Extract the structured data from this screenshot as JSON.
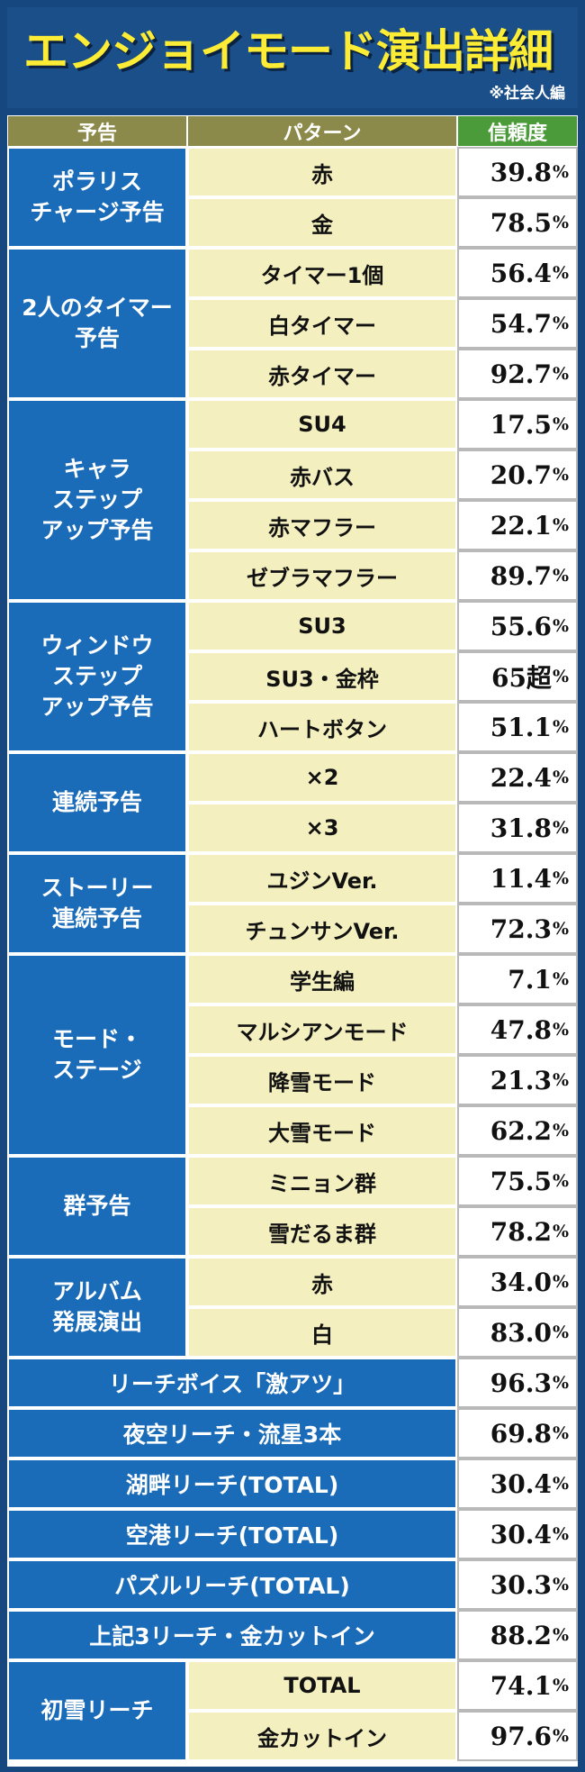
{
  "title": "エンジョイモード演出詳細",
  "subtitle": "※社会人編",
  "headers": {
    "announcement": "予告",
    "pattern": "パターン",
    "reliability": "信頼度"
  },
  "unit": "%",
  "groups": [
    {
      "name": "ポラリス\nチャージ予告",
      "rows": [
        {
          "pattern": "赤",
          "value": "39.8"
        },
        {
          "pattern": "金",
          "value": "78.5"
        }
      ]
    },
    {
      "name": "2人のタイマー\n予告",
      "rows": [
        {
          "pattern": "タイマー1個",
          "value": "56.4"
        },
        {
          "pattern": "白タイマー",
          "value": "54.7"
        },
        {
          "pattern": "赤タイマー",
          "value": "92.7"
        }
      ]
    },
    {
      "name": "キャラ\nステップ\nアップ予告",
      "rows": [
        {
          "pattern": "SU4",
          "value": "17.5"
        },
        {
          "pattern": "赤バス",
          "value": "20.7"
        },
        {
          "pattern": "赤マフラー",
          "value": "22.1"
        },
        {
          "pattern": "ゼブラマフラー",
          "value": "89.7"
        }
      ]
    },
    {
      "name": "ウィンドウ\nステップ\nアップ予告",
      "rows": [
        {
          "pattern": "SU3",
          "value": "55.6"
        },
        {
          "pattern": "SU3・金枠",
          "value": "65超"
        },
        {
          "pattern": "ハートボタン",
          "value": "51.1"
        }
      ]
    },
    {
      "name": "連続予告",
      "rows": [
        {
          "pattern": "×2",
          "value": "22.4"
        },
        {
          "pattern": "×3",
          "value": "31.8"
        }
      ]
    },
    {
      "name": "ストーリー\n連続予告",
      "rows": [
        {
          "pattern": "ユジンVer.",
          "value": "11.4"
        },
        {
          "pattern": "チュンサンVer.",
          "value": "72.3"
        }
      ]
    },
    {
      "name": "モード・\nステージ",
      "rows": [
        {
          "pattern": "学生編",
          "value": "7.1"
        },
        {
          "pattern": "マルシアンモード",
          "value": "47.8"
        },
        {
          "pattern": "降雪モード",
          "value": "21.3"
        },
        {
          "pattern": "大雪モード",
          "value": "62.2"
        }
      ]
    },
    {
      "name": "群予告",
      "rows": [
        {
          "pattern": "ミニョン群",
          "value": "75.5"
        },
        {
          "pattern": "雪だるま群",
          "value": "78.2"
        }
      ]
    },
    {
      "name": "アルバム\n発展演出",
      "rows": [
        {
          "pattern": "赤",
          "value": "34.0"
        },
        {
          "pattern": "白",
          "value": "83.0"
        }
      ]
    },
    {
      "name": "リーチボイス「激アツ」",
      "wide": true,
      "rows": [
        {
          "value": "96.3"
        }
      ]
    },
    {
      "name": "夜空リーチ・流星3本",
      "wide": true,
      "rows": [
        {
          "value": "69.8"
        }
      ]
    },
    {
      "name": "湖畔リーチ(TOTAL)",
      "wide": true,
      "rows": [
        {
          "value": "30.4"
        }
      ]
    },
    {
      "name": "空港リーチ(TOTAL)",
      "wide": true,
      "rows": [
        {
          "value": "30.4"
        }
      ]
    },
    {
      "name": "パズルリーチ(TOTAL)",
      "wide": true,
      "rows": [
        {
          "value": "30.3"
        }
      ]
    },
    {
      "name": "上記3リーチ・金カットイン",
      "wide": true,
      "rows": [
        {
          "value": "88.2"
        }
      ]
    },
    {
      "name": "初雪リーチ",
      "rows": [
        {
          "pattern": "TOTAL",
          "value": "74.1"
        },
        {
          "pattern": "金カットイン",
          "value": "97.6"
        }
      ]
    }
  ]
}
